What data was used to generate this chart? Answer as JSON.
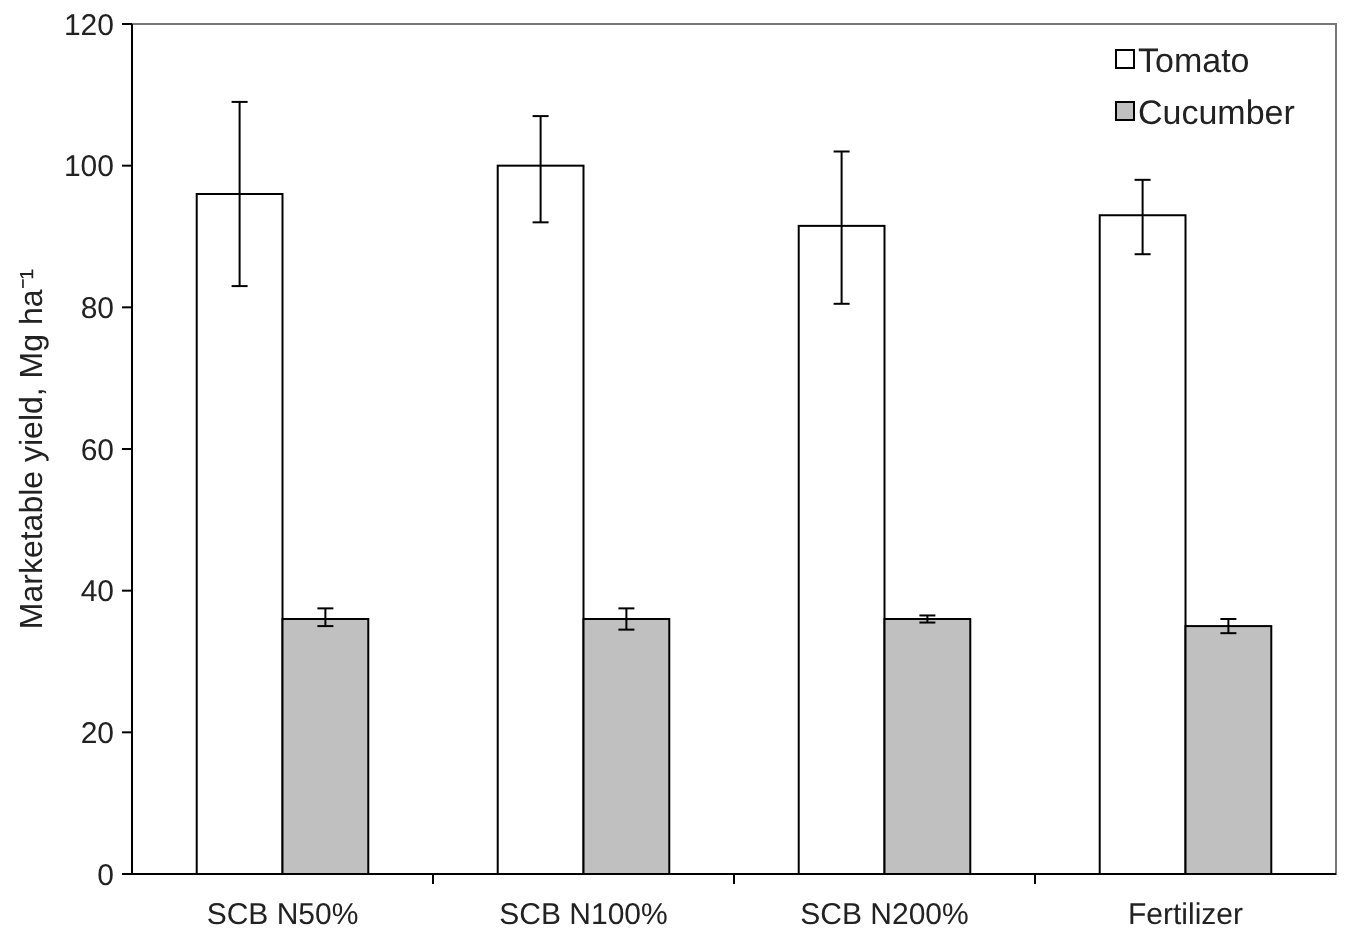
{
  "chart_data": {
    "type": "bar",
    "ylabel": "Marketable yield, Mg ha⁻¹",
    "categories": [
      "SCB N50%",
      "SCB N100%",
      "SCB N200%",
      "Fertilizer"
    ],
    "series": [
      {
        "name": "Tomato",
        "color": "#ffffff",
        "values": [
          96,
          100,
          91.5,
          93
        ],
        "errors": [
          [
            83,
            109
          ],
          [
            92,
            107
          ],
          [
            80.5,
            102
          ],
          [
            87.5,
            98
          ]
        ]
      },
      {
        "name": "Cucumber",
        "color": "#c0c0c0",
        "values": [
          36,
          36,
          36,
          35
        ],
        "errors": [
          [
            35,
            37.5
          ],
          [
            34.5,
            37.5
          ],
          [
            35.5,
            36.5
          ],
          [
            34,
            36
          ]
        ]
      }
    ],
    "ylim": [
      0,
      120
    ],
    "yticks": [
      0,
      20,
      40,
      60,
      80,
      100,
      120
    ],
    "legend": "top right",
    "grid": false
  }
}
